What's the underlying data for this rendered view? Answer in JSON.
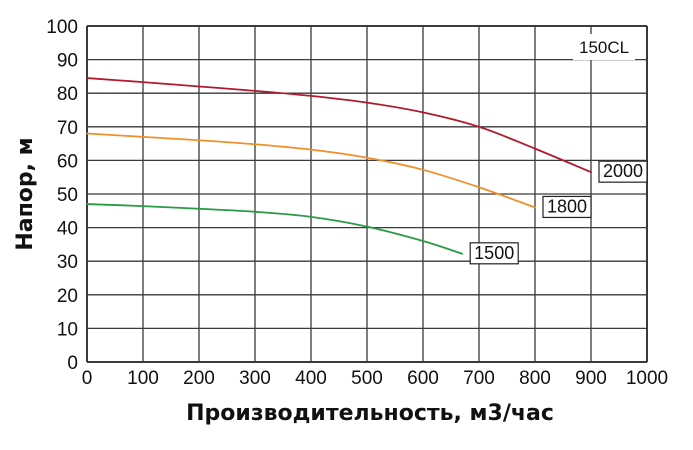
{
  "chart_data": {
    "type": "line",
    "title": "150CL",
    "xlabel": "Производительность, м3/час",
    "ylabel": "Напор, м",
    "xlim": [
      0,
      1000
    ],
    "ylim": [
      0,
      100
    ],
    "x_ticks": [
      "0",
      "100",
      "200",
      "300",
      "400",
      "500",
      "600",
      "700",
      "800",
      "900",
      "1000"
    ],
    "y_ticks": [
      "0",
      "10",
      "20",
      "30",
      "40",
      "50",
      "60",
      "70",
      "80",
      "90",
      "100"
    ],
    "grid": true,
    "legend": "inline-labels",
    "series": [
      {
        "name": "2000",
        "color": "#b01b2e",
        "x": [
          0,
          100,
          200,
          300,
          400,
          500,
          600,
          700,
          800,
          900
        ],
        "y": [
          84.5,
          83.3,
          82,
          80.7,
          79.2,
          77.2,
          74.3,
          70,
          63.5,
          56.5
        ]
      },
      {
        "name": "1800",
        "color": "#f0902a",
        "x": [
          0,
          100,
          200,
          300,
          400,
          500,
          600,
          700,
          800
        ],
        "y": [
          68,
          67,
          66,
          64.8,
          63.2,
          60.8,
          57.2,
          52,
          46
        ]
      },
      {
        "name": "1500",
        "color": "#2a9a44",
        "x": [
          0,
          100,
          200,
          300,
          400,
          500,
          600,
          670
        ],
        "y": [
          47,
          46.4,
          45.6,
          44.7,
          43.2,
          40.3,
          36,
          32.2
        ]
      }
    ]
  }
}
